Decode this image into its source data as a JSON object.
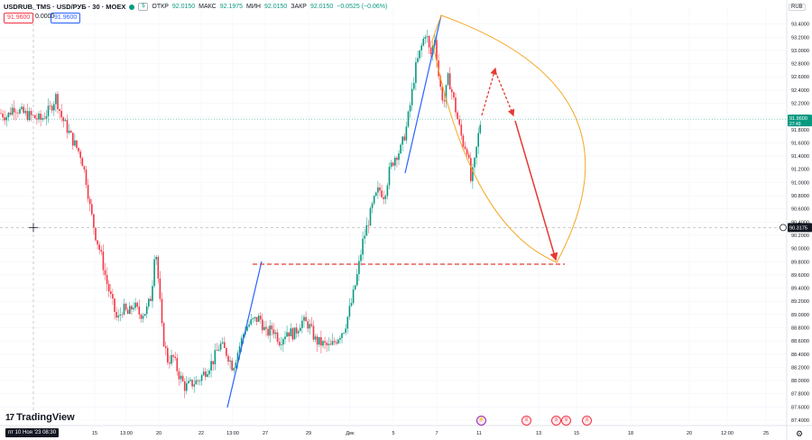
{
  "legend": {
    "symbol": "USDRUB_TMS · USD/РУБ · 30 · MOEX",
    "open_label": "ОТКР",
    "open": "92.0150",
    "high_label": "МАКС",
    "high": "92.1975",
    "low_label": "МИН",
    "low": "92.0150",
    "close_label": "ЗАКР",
    "close": "92.0150",
    "change": "−0.0525 (−0.06%)",
    "flag_icon": "$"
  },
  "bid": "91.9600",
  "spread": "0.0000",
  "ask": "91.9600",
  "currency": "RUB",
  "logo_text": "TradingView",
  "date_badge": "пт 10 Ноя '23   08:30",
  "settings_icon": "⚙",
  "events": [
    {
      "type": "bolt",
      "icon": "⚡",
      "x_label": "11"
    },
    {
      "type": "us",
      "icon": "us-flag-icon",
      "x_label": "13"
    },
    {
      "type": "us",
      "icon": "us-flag-icon",
      "x_label": "12:00"
    },
    {
      "type": "us",
      "icon": "us-flag-icon",
      "x_label": "12:00"
    },
    {
      "type": "us",
      "icon": "us-flag-icon",
      "x_label": "18"
    }
  ],
  "colors": {
    "up": "#089981",
    "down": "#f23645",
    "trend_blue": "#2962ff",
    "arc_orange": "#f5a623",
    "dashed_red": "#e53935",
    "grid": "#f0f3fa"
  },
  "chart_data": {
    "type": "candlestick",
    "ylim": [
      87.4,
      93.6
    ],
    "y_ticks": [
      "93.4000",
      "93.2000",
      "93.0000",
      "92.8000",
      "92.6000",
      "92.4000",
      "92.2000",
      "92.0000",
      "91.8000",
      "91.6000",
      "91.4000",
      "91.2000",
      "91.0000",
      "90.8000",
      "90.6000",
      "90.4000",
      "90.2000",
      "90.0000",
      "89.8000",
      "89.6000",
      "89.4000",
      "89.2000",
      "89.0000",
      "88.8000",
      "88.6000",
      "88.4000",
      "88.2000",
      "88.0000",
      "87.8000",
      "87.6000",
      "87.4000"
    ],
    "x_ticks": [
      "15",
      "13:00",
      "20",
      "22",
      "13:00",
      "27",
      "29",
      "Дек",
      "5",
      "7",
      "11",
      "13",
      "15",
      "18",
      "20",
      "12:00",
      "25"
    ],
    "price_label": "91.9600",
    "price_sub": "27:49",
    "price": 91.96,
    "crosshair_price": "90.3175",
    "crosshair_y": 90.3175,
    "close_path": [
      [
        0,
        92.05
      ],
      [
        8,
        92.0
      ],
      [
        15,
        92.15
      ],
      [
        25,
        92.05
      ],
      [
        35,
        92.0
      ],
      [
        45,
        91.95
      ],
      [
        55,
        92.1
      ],
      [
        62,
        92.3
      ],
      [
        68,
        92.0
      ],
      [
        75,
        91.8
      ],
      [
        82,
        91.6
      ],
      [
        90,
        91.4
      ],
      [
        96,
        91.0
      ],
      [
        100,
        90.6
      ],
      [
        106,
        90.2
      ],
      [
        112,
        89.9
      ],
      [
        118,
        89.5
      ],
      [
        124,
        89.2
      ],
      [
        130,
        88.9
      ],
      [
        136,
        89.1
      ],
      [
        142,
        89.0
      ],
      [
        148,
        89.15
      ],
      [
        155,
        89.0
      ],
      [
        162,
        89.05
      ],
      [
        168,
        89.3
      ],
      [
        172,
        90.1
      ],
      [
        175,
        89.6
      ],
      [
        180,
        88.7
      ],
      [
        186,
        88.3
      ],
      [
        192,
        88.35
      ],
      [
        198,
        88.1
      ],
      [
        205,
        87.9
      ],
      [
        212,
        87.95
      ],
      [
        220,
        88.0
      ],
      [
        228,
        88.15
      ],
      [
        236,
        88.3
      ],
      [
        244,
        88.55
      ],
      [
        252,
        88.4
      ],
      [
        258,
        88.2
      ],
      [
        265,
        88.5
      ],
      [
        272,
        88.8
      ],
      [
        280,
        88.9
      ],
      [
        288,
        88.95
      ],
      [
        295,
        88.7
      ],
      [
        302,
        88.8
      ],
      [
        310,
        88.6
      ],
      [
        318,
        88.75
      ],
      [
        326,
        88.7
      ],
      [
        334,
        88.9
      ],
      [
        342,
        88.85
      ],
      [
        350,
        88.6
      ],
      [
        358,
        88.55
      ],
      [
        366,
        88.5
      ],
      [
        374,
        88.65
      ],
      [
        382,
        88.8
      ],
      [
        390,
        89.2
      ],
      [
        396,
        89.6
      ],
      [
        402,
        90.1
      ],
      [
        408,
        90.4
      ],
      [
        414,
        90.7
      ],
      [
        420,
        90.9
      ],
      [
        426,
        90.8
      ],
      [
        432,
        91.2
      ],
      [
        438,
        91.4
      ],
      [
        444,
        91.5
      ],
      [
        450,
        91.8
      ],
      [
        455,
        92.2
      ],
      [
        460,
        92.7
      ],
      [
        466,
        93.0
      ],
      [
        472,
        93.3
      ],
      [
        477,
        92.9
      ],
      [
        482,
        93.2
      ],
      [
        487,
        92.5
      ],
      [
        492,
        92.2
      ],
      [
        497,
        92.6
      ],
      [
        502,
        92.3
      ],
      [
        508,
        91.9
      ],
      [
        513,
        91.6
      ],
      [
        518,
        91.5
      ],
      [
        522,
        91.0
      ],
      [
        526,
        91.3
      ],
      [
        530,
        91.7
      ],
      [
        533,
        91.96
      ]
    ]
  }
}
